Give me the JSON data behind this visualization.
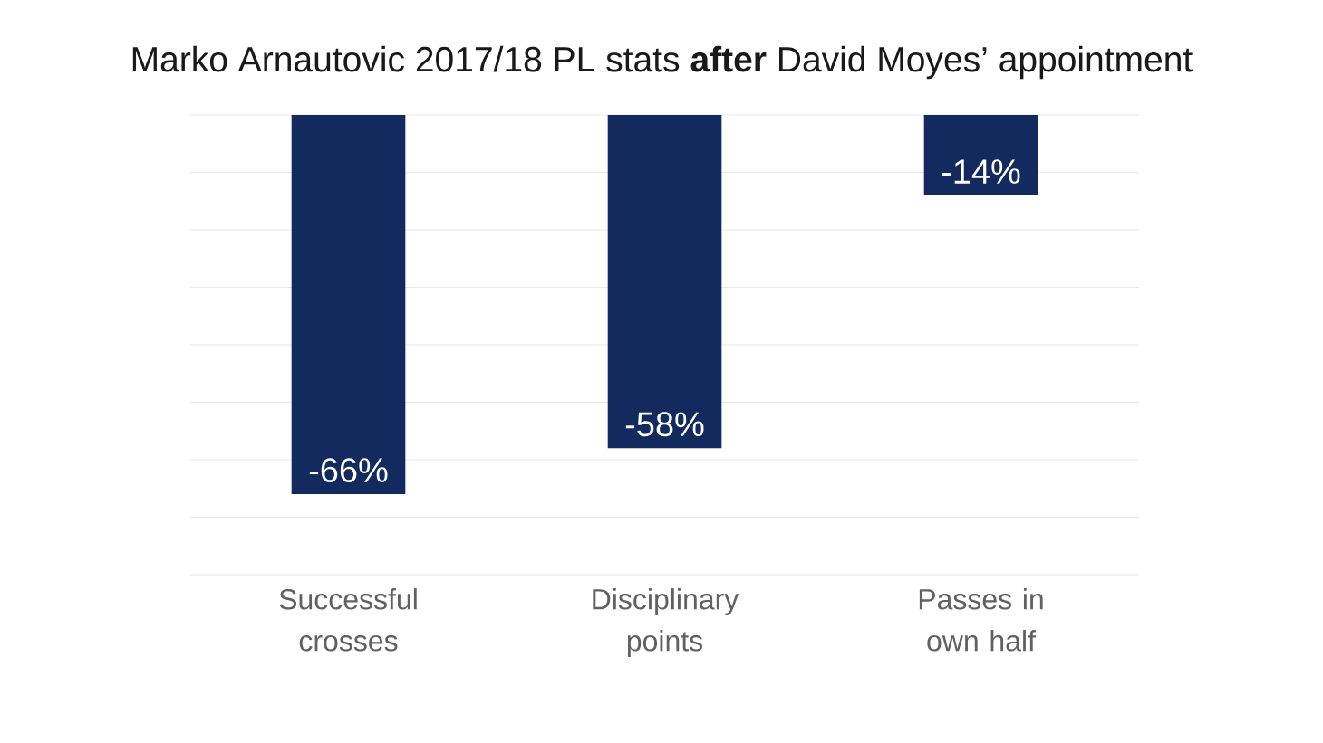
{
  "chart_data": {
    "type": "bar",
    "title": "Marko Arnautovic 2017/18 PL stats **after** David Moyes’ appointment",
    "categories": [
      "Successful crosses",
      "Disciplinary points",
      "Passes in own half"
    ],
    "values": [
      -66,
      -58,
      -14
    ],
    "color": "#132a5e",
    "value_labels": [
      "-66%",
      "-58%",
      "-14%"
    ],
    "ylim": [
      -80,
      0
    ],
    "yticks": [
      {
        "value": -80,
        "label": null
      },
      {
        "value": -70,
        "label": null
      },
      {
        "value": -60,
        "label": null
      },
      {
        "value": -50,
        "label": null
      },
      {
        "value": -40,
        "label": null
      },
      {
        "value": -30,
        "label": null
      },
      {
        "value": -20,
        "label": null
      },
      {
        "value": -10,
        "label": null
      },
      {
        "value": 0,
        "label": null
      }
    ],
    "tick_labels": "x",
    "grid": "y"
  }
}
